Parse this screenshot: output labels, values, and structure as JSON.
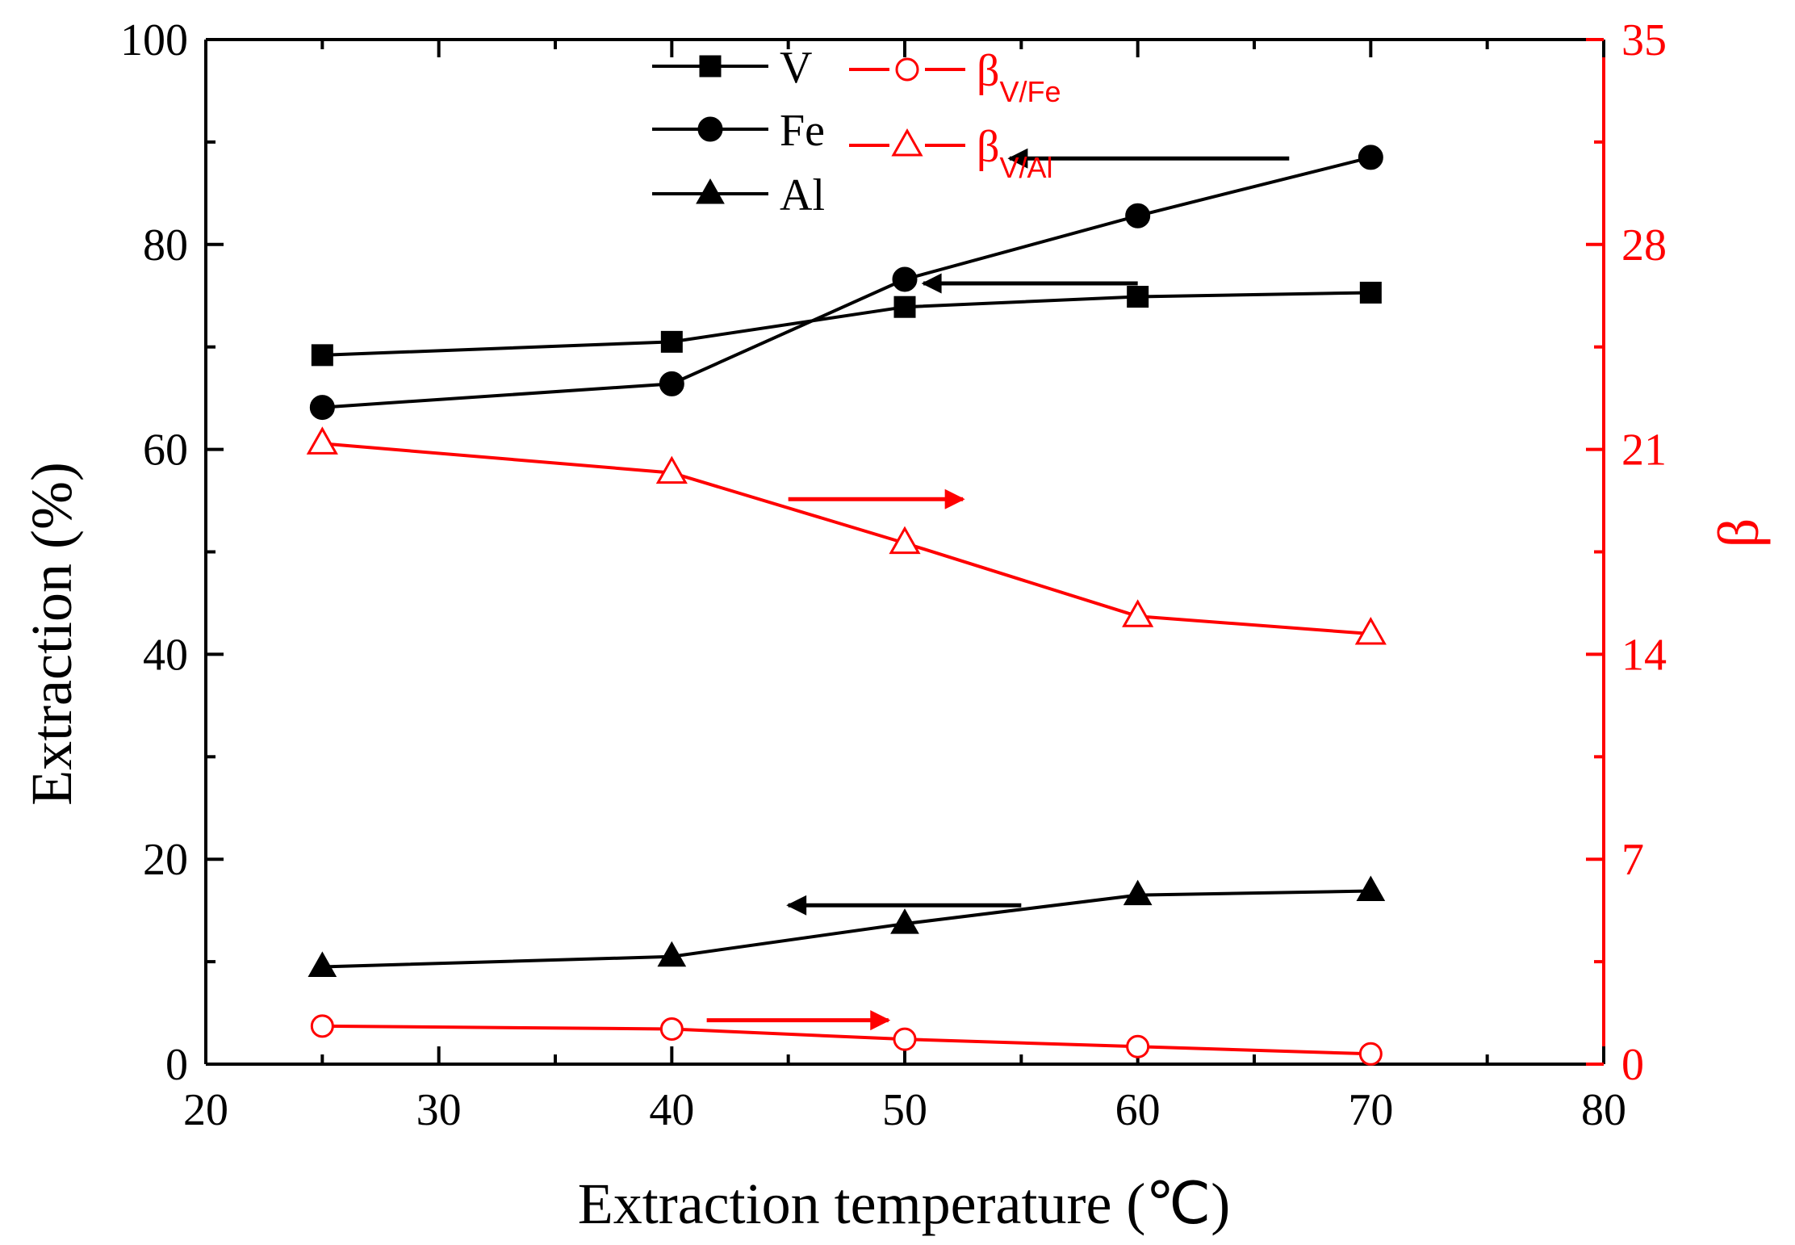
{
  "chart_data": {
    "type": "line",
    "xlabel": "Extraction temperature (℃)",
    "ylabel": "Extraction (%)",
    "y2label": "β",
    "xlim": [
      20,
      80
    ],
    "xticks": [
      20,
      30,
      40,
      50,
      60,
      70,
      80
    ],
    "ylim": [
      0,
      100
    ],
    "yticks": [
      0,
      20,
      40,
      60,
      80,
      100
    ],
    "y2lim": [
      0,
      35
    ],
    "y2ticks": [
      0,
      7,
      14,
      21,
      28,
      35
    ],
    "grid": false,
    "legend_placement": "top-center",
    "x": [
      25,
      40,
      50,
      60,
      70
    ],
    "series": [
      {
        "name": "V",
        "axis": "left",
        "marker": "square",
        "filled": true,
        "color": "#000000",
        "values": [
          69.2,
          70.5,
          73.9,
          74.9,
          75.3
        ]
      },
      {
        "name": "Fe",
        "axis": "left",
        "marker": "circle",
        "filled": true,
        "color": "#000000",
        "values": [
          64.1,
          66.4,
          76.6,
          82.8,
          88.5
        ]
      },
      {
        "name": "Al",
        "axis": "left",
        "marker": "triangle",
        "filled": true,
        "color": "#000000",
        "values": [
          9.5,
          10.5,
          13.7,
          16.5,
          16.9
        ]
      },
      {
        "name": "β",
        "sub": "V/Fe",
        "axis": "right",
        "marker": "circle",
        "filled": false,
        "color": "#ff0000",
        "values": [
          1.3,
          1.2,
          0.85,
          0.6,
          0.35
        ]
      },
      {
        "name": "β",
        "sub": "V/Al",
        "axis": "right",
        "marker": "triangle",
        "filled": false,
        "color": "#ff0000",
        "values": [
          21.2,
          20.2,
          17.8,
          15.3,
          14.7
        ]
      }
    ],
    "arrows": [
      {
        "from": [
          66.5,
          88.4
        ],
        "to": [
          54.5,
          88.4
        ],
        "axis": "left",
        "color": "#000000"
      },
      {
        "from": [
          60.0,
          76.2
        ],
        "to": [
          50.8,
          76.2
        ],
        "axis": "left",
        "color": "#000000"
      },
      {
        "from": [
          55.0,
          15.5
        ],
        "to": [
          45.0,
          15.5
        ],
        "axis": "left",
        "color": "#000000"
      },
      {
        "from": [
          45.0,
          19.3
        ],
        "to": [
          52.5,
          19.3
        ],
        "axis": "right",
        "color": "#ff0000"
      },
      {
        "from": [
          41.5,
          1.5
        ],
        "to": [
          49.3,
          1.5
        ],
        "axis": "right",
        "color": "#ff0000"
      }
    ]
  }
}
